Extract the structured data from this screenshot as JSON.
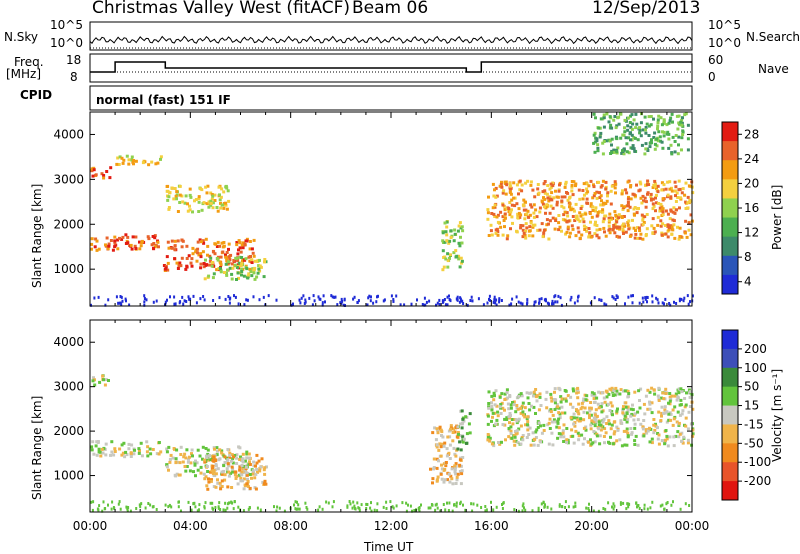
{
  "header": {
    "title": "Christmas Valley West (fitACF)",
    "beam": "Beam 06",
    "date": "12/Sep/2013"
  },
  "top_panels": {
    "nsky_label": "N.Sky",
    "nsky_ticks": [
      "10^5",
      "10^0"
    ],
    "nsearch_label": "N.Search",
    "nsearch_ticks": [
      "10^5",
      "10^0"
    ],
    "freq_label": "Freq.",
    "freq_unit": "[MHz]",
    "freq_ticks": [
      "18",
      "8"
    ],
    "nave_label": "Nave",
    "nave_ticks": [
      "60",
      "0"
    ],
    "cpid_label": "CPID",
    "cpid_value": "normal (fast) 151 IF"
  },
  "power_panel": {
    "ylabel": "Slant Range [km]",
    "colorbar_label": "Power [dB]",
    "colorbar_ticks": [
      "28",
      "24",
      "20",
      "16",
      "12",
      "8",
      "4"
    ],
    "colors": [
      "#1f2bd6",
      "#2a55b8",
      "#3d8a6a",
      "#4caf50",
      "#8fd14f",
      "#f4d03f",
      "#f39c12",
      "#e8632b",
      "#e21b12"
    ]
  },
  "velocity_panel": {
    "ylabel": "Slant Range [km]",
    "colorbar_label": "Velocity [m s⁻¹]",
    "colorbar_ticks": [
      "200",
      "100",
      "50",
      "15",
      "-15",
      "-50",
      "-100",
      "-200"
    ],
    "colors": [
      "#1f2bd6",
      "#3d4fb8",
      "#3a8a3a",
      "#62c43c",
      "#c8c8c0",
      "#f0b44a",
      "#f08a1e",
      "#e8542a",
      "#e0150f"
    ]
  },
  "x_axis": {
    "label": "Time UT",
    "ticks": [
      "00:00",
      "04:00",
      "08:00",
      "12:00",
      "16:00",
      "20:00",
      "00:00"
    ]
  },
  "y_ticks": [
    "4000",
    "3000",
    "2000",
    "1000"
  ],
  "chart_data": [
    {
      "type": "heatmap",
      "title": "Christmas Valley West (fitACF) Beam 06 12/Sep/2013",
      "xlabel": "Time UT",
      "ylabel": "Slant Range [km]",
      "xlim": [
        0,
        24
      ],
      "ylim": [
        180,
        4500
      ],
      "value": "Power [dB]",
      "zlim": [
        0,
        30
      ],
      "regions": [
        {
          "t": [
            0.0,
            2.8
          ],
          "range": [
            1450,
            1800
          ],
          "level": 26
        },
        {
          "t": [
            0.0,
            0.8
          ],
          "range": [
            3050,
            3300
          ],
          "level": 26
        },
        {
          "t": [
            0.8,
            2.8
          ],
          "range": [
            3350,
            3550
          ],
          "level": 20
        },
        {
          "t": [
            2.9,
            6.5
          ],
          "range": [
            1000,
            1700
          ],
          "level": 25
        },
        {
          "t": [
            3.0,
            5.5
          ],
          "range": [
            2300,
            2900
          ],
          "level": 18
        },
        {
          "t": [
            4.5,
            7.0
          ],
          "range": [
            800,
            1300
          ],
          "level": 14
        },
        {
          "t": [
            14.0,
            14.8
          ],
          "range": [
            1000,
            2100
          ],
          "level": 14
        },
        {
          "t": [
            15.8,
            24.0
          ],
          "range": [
            1700,
            3000
          ],
          "level": 22
        },
        {
          "t": [
            20.0,
            23.8
          ],
          "range": [
            3600,
            4500
          ],
          "level": 10
        }
      ]
    },
    {
      "type": "heatmap",
      "title": "",
      "xlabel": "Time UT",
      "ylabel": "Slant Range [km]",
      "xlim": [
        0,
        24
      ],
      "ylim": [
        180,
        4500
      ],
      "value": "Velocity [m s⁻¹]",
      "zlim": [
        -200,
        200
      ],
      "regions": [
        {
          "t": [
            0.0,
            2.8
          ],
          "range": [
            1450,
            1800
          ],
          "level": 0
        },
        {
          "t": [
            0.0,
            0.8
          ],
          "range": [
            3050,
            3300
          ],
          "level": 0
        },
        {
          "t": [
            2.9,
            6.5
          ],
          "range": [
            1000,
            1700
          ],
          "level": 0
        },
        {
          "t": [
            4.5,
            7.0
          ],
          "range": [
            700,
            1500
          ],
          "level": -70
        },
        {
          "t": [
            13.5,
            14.8
          ],
          "range": [
            800,
            2200
          ],
          "level": -60
        },
        {
          "t": [
            14.6,
            15.1
          ],
          "range": [
            1600,
            2500
          ],
          "level": 40
        },
        {
          "t": [
            15.8,
            24.0
          ],
          "range": [
            1700,
            3000
          ],
          "level": 0
        }
      ]
    }
  ]
}
